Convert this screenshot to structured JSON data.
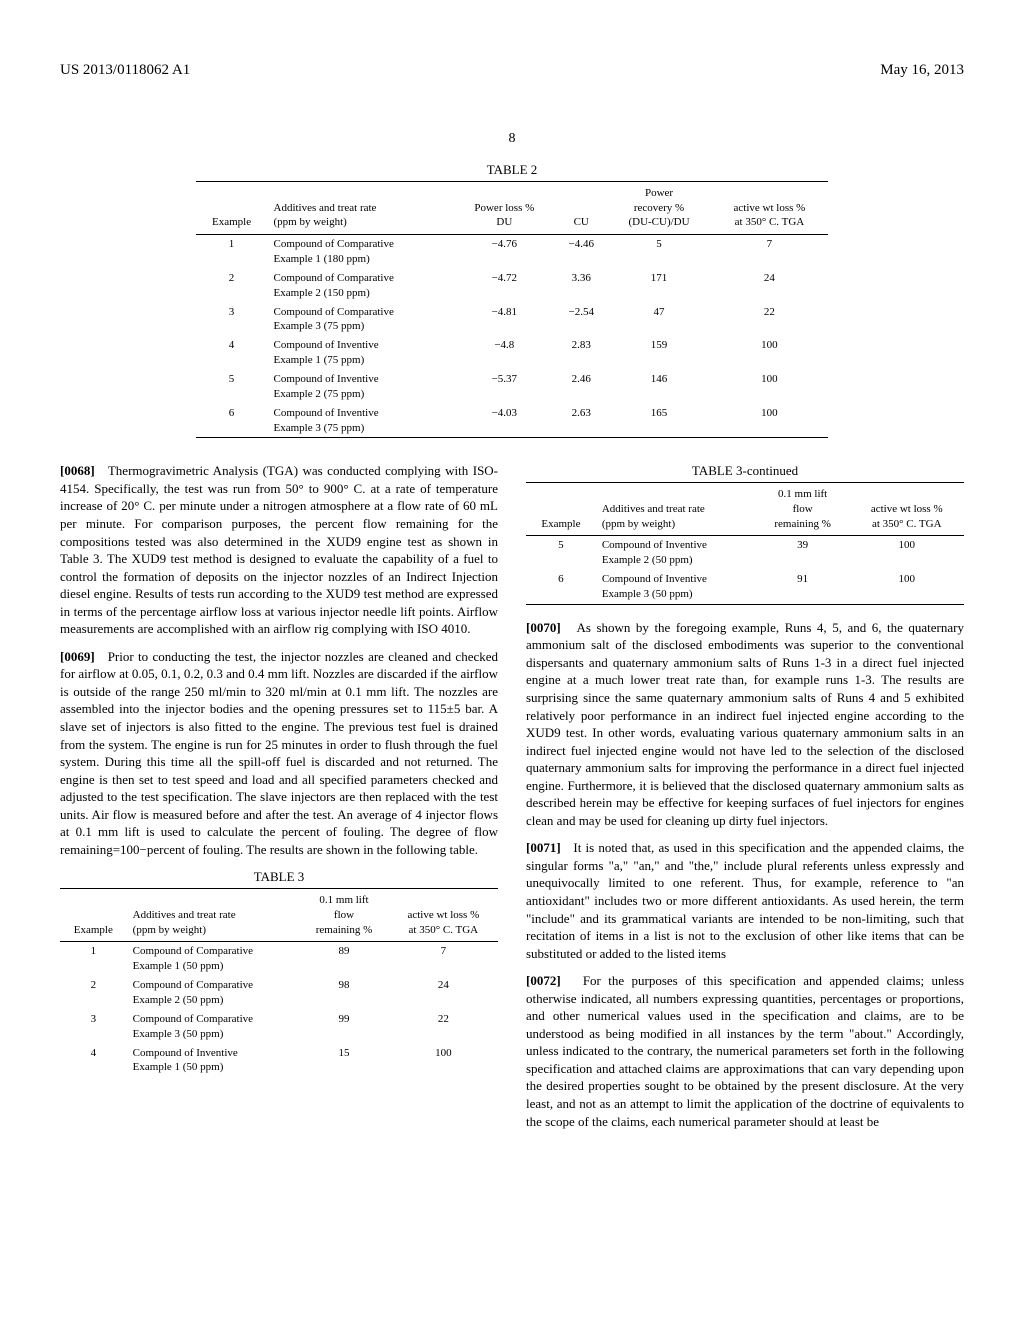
{
  "header": {
    "doc_number": "US 2013/0118062 A1",
    "date": "May 16, 2013"
  },
  "page_number": "8",
  "table2": {
    "label": "TABLE 2",
    "headers": {
      "example": "Example",
      "additives": "Additives and treat rate\n(ppm by weight)",
      "power_loss_du": "Power loss %\nDU",
      "cu": "CU",
      "power_recovery": "Power\nrecovery %\n(DU-CU)/DU",
      "active_wt": "active wt loss %\nat 350° C. TGA"
    },
    "rows": [
      {
        "ex": "1",
        "add": "Compound of Comparative Example 1 (180 ppm)",
        "du": "−4.76",
        "cu": "−4.46",
        "rec": "5",
        "wt": "7"
      },
      {
        "ex": "2",
        "add": "Compound of Comparative Example 2 (150 ppm)",
        "du": "−4.72",
        "cu": "3.36",
        "rec": "171",
        "wt": "24"
      },
      {
        "ex": "3",
        "add": "Compound of Comparative Example 3 (75 ppm)",
        "du": "−4.81",
        "cu": "−2.54",
        "rec": "47",
        "wt": "22"
      },
      {
        "ex": "4",
        "add": "Compound of Inventive Example 1 (75 ppm)",
        "du": "−4.8",
        "cu": "2.83",
        "rec": "159",
        "wt": "100"
      },
      {
        "ex": "5",
        "add": "Compound of Inventive Example 2 (75 ppm)",
        "du": "−5.37",
        "cu": "2.46",
        "rec": "146",
        "wt": "100"
      },
      {
        "ex": "6",
        "add": "Compound of Inventive Example 3 (75 ppm)",
        "du": "−4.03",
        "cu": "2.63",
        "rec": "165",
        "wt": "100"
      }
    ]
  },
  "paragraphs": {
    "p68_num": "[0068]",
    "p68": "Thermogravimetric Analysis (TGA) was conducted complying with ISO-4154. Specifically, the test was run from 50° to 900° C. at a rate of temperature increase of 20° C. per minute under a nitrogen atmosphere at a flow rate of 60 mL per minute. For comparison purposes, the percent flow remaining for the compositions tested was also determined in the XUD9 engine test as shown in Table 3. The XUD9 test method is designed to evaluate the capability of a fuel to control the formation of deposits on the injector nozzles of an Indirect Injection diesel engine. Results of tests run according to the XUD9 test method are expressed in terms of the percentage airflow loss at various injector needle lift points. Airflow measurements are accomplished with an airflow rig complying with ISO 4010.",
    "p69_num": "[0069]",
    "p69": "Prior to conducting the test, the injector nozzles are cleaned and checked for airflow at 0.05, 0.1, 0.2, 0.3 and 0.4 mm lift. Nozzles are discarded if the airflow is outside of the range 250 ml/min to 320 ml/min at 0.1 mm lift. The nozzles are assembled into the injector bodies and the opening pressures set to 115±5 bar. A slave set of injectors is also fitted to the engine. The previous test fuel is drained from the system. The engine is run for 25 minutes in order to flush through the fuel system. During this time all the spill-off fuel is discarded and not returned. The engine is then set to test speed and load and all specified parameters checked and adjusted to the test specification. The slave injectors are then replaced with the test units. Air flow is measured before and after the test. An average of 4 injector flows at 0.1 mm lift is used to calculate the percent of fouling. The degree of flow remaining=100−percent of fouling. The results are shown in the following table.",
    "p70_num": "[0070]",
    "p70": "As shown by the foregoing example, Runs 4, 5, and 6, the quaternary ammonium salt of the disclosed embodiments was superior to the conventional dispersants and quaternary ammonium salts of Runs 1-3 in a direct fuel injected engine at a much lower treat rate than, for example runs 1-3. The results are surprising since the same quaternary ammonium salts of Runs 4 and 5 exhibited relatively poor performance in an indirect fuel injected engine according to the XUD9 test. In other words, evaluating various quaternary ammonium salts in an indirect fuel injected engine would not have led to the selection of the disclosed quaternary ammonium salts for improving the performance in a direct fuel injected engine. Furthermore, it is believed that the disclosed quaternary ammonium salts as described herein may be effective for keeping surfaces of fuel injectors for engines clean and may be used for cleaning up dirty fuel injectors.",
    "p71_num": "[0071]",
    "p71": "It is noted that, as used in this specification and the appended claims, the singular forms \"a,\" \"an,\" and \"the,\" include plural referents unless expressly and unequivocally limited to one referent. Thus, for example, reference to \"an antioxidant\" includes two or more different antioxidants. As used herein, the term \"include\" and its grammatical variants are intended to be non-limiting, such that recitation of items in a list is not to the exclusion of other like items that can be substituted or added to the listed items",
    "p72_num": "[0072]",
    "p72": "For the purposes of this specification and appended claims; unless otherwise indicated, all numbers expressing quantities, percentages or proportions, and other numerical values used in the specification and claims, are to be understood as being modified in all instances by the term \"about.\" Accordingly, unless indicated to the contrary, the numerical parameters set forth in the following specification and attached claims are approximations that can vary depending upon the desired properties sought to be obtained by the present disclosure. At the very least, and not as an attempt to limit the application of the doctrine of equivalents to the scope of the claims, each numerical parameter should at least be"
  },
  "table3": {
    "label": "TABLE 3",
    "label_cont": "TABLE 3-continued",
    "headers": {
      "example": "Example",
      "additives": "Additives and treat rate\n(ppm by weight)",
      "flow": "0.1 mm lift\nflow\nremaining %",
      "active_wt": "active wt loss %\nat 350° C. TGA"
    },
    "rows_left": [
      {
        "ex": "1",
        "add": "Compound of Comparative Example 1 (50 ppm)",
        "flow": "89",
        "wt": "7"
      },
      {
        "ex": "2",
        "add": "Compound of Comparative Example 2 (50 ppm)",
        "flow": "98",
        "wt": "24"
      },
      {
        "ex": "3",
        "add": "Compound of Comparative Example 3 (50 ppm)",
        "flow": "99",
        "wt": "22"
      },
      {
        "ex": "4",
        "add": "Compound of Inventive Example 1 (50 ppm)",
        "flow": "15",
        "wt": "100"
      }
    ],
    "rows_right": [
      {
        "ex": "5",
        "add": "Compound of Inventive Example 2 (50 ppm)",
        "flow": "39",
        "wt": "100"
      },
      {
        "ex": "6",
        "add": "Compound of Inventive Example 3 (50 ppm)",
        "flow": "91",
        "wt": "100"
      }
    ]
  }
}
